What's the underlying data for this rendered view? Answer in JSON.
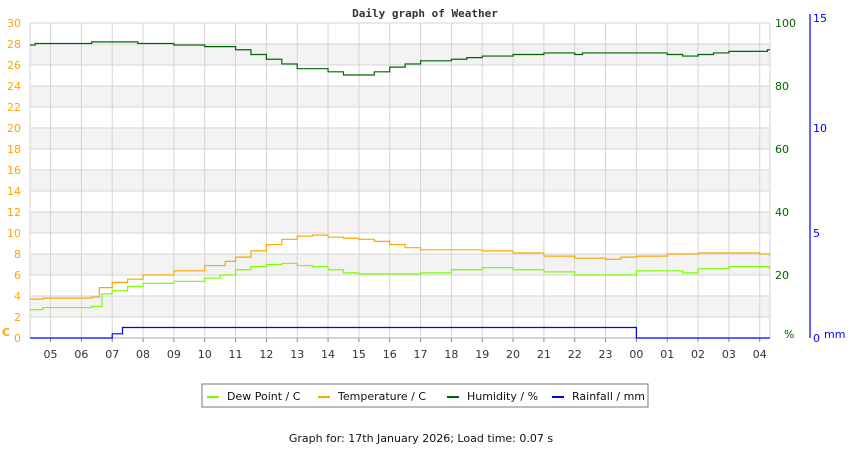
{
  "chart_data": {
    "type": "line",
    "title": "Daily graph of Weather",
    "footer": "Graph for: 17th January 2026; Load time: 0.07 s",
    "x_range": [
      "04:20",
      "04:20"
    ],
    "x_ticks": [
      "05",
      "06",
      "07",
      "08",
      "09",
      "10",
      "11",
      "12",
      "13",
      "14",
      "15",
      "16",
      "17",
      "18",
      "19",
      "20",
      "21",
      "22",
      "23",
      "00",
      "01",
      "02",
      "03",
      "04"
    ],
    "grid": true,
    "legend_placement": "bottom",
    "axes": {
      "left": {
        "label": "C",
        "range": [
          0,
          30
        ],
        "ticks": [
          "0",
          "2",
          "4",
          "6",
          "8",
          "10",
          "12",
          "14",
          "16",
          "18",
          "20",
          "22",
          "24",
          "26",
          "28",
          "30"
        ],
        "color": "#ffa500"
      },
      "right_humidity": {
        "label": "%",
        "range": [
          0,
          100
        ],
        "ticks": [
          "20",
          "40",
          "60",
          "80",
          "100"
        ],
        "color": "#006400"
      },
      "right_rain": {
        "label": "mm",
        "range": [
          0,
          15
        ],
        "ticks": [
          "0",
          "5",
          "10",
          "15"
        ],
        "color": "#0000ff"
      }
    },
    "series": [
      {
        "name": "Dew Point / C",
        "axis": "left",
        "color": "#7cfc00",
        "points": [
          [
            "04:20",
            2.7
          ],
          [
            "04:45",
            2.9
          ],
          [
            "06:20",
            3.0
          ],
          [
            "06:40",
            4.2
          ],
          [
            "07:00",
            4.5
          ],
          [
            "07:30",
            4.9
          ],
          [
            "08:00",
            5.2
          ],
          [
            "09:00",
            5.4
          ],
          [
            "10:00",
            5.7
          ],
          [
            "10:30",
            6.0
          ],
          [
            "11:00",
            6.5
          ],
          [
            "11:30",
            6.8
          ],
          [
            "12:00",
            7.0
          ],
          [
            "12:30",
            7.1
          ],
          [
            "13:00",
            6.9
          ],
          [
            "13:30",
            6.8
          ],
          [
            "14:00",
            6.5
          ],
          [
            "14:30",
            6.2
          ],
          [
            "15:00",
            6.1
          ],
          [
            "16:00",
            6.1
          ],
          [
            "17:00",
            6.2
          ],
          [
            "18:00",
            6.5
          ],
          [
            "19:00",
            6.7
          ],
          [
            "20:00",
            6.5
          ],
          [
            "21:00",
            6.3
          ],
          [
            "22:00",
            6.0
          ],
          [
            "23:00",
            6.0
          ],
          [
            "00:00",
            6.4
          ],
          [
            "01:00",
            6.4
          ],
          [
            "01:30",
            6.2
          ],
          [
            "02:00",
            6.6
          ],
          [
            "03:00",
            6.8
          ],
          [
            "04:00",
            6.8
          ],
          [
            "04:19",
            6.6
          ]
        ]
      },
      {
        "name": "Temperature / C",
        "axis": "left",
        "color": "#ffa500",
        "points": [
          [
            "04:20",
            3.7
          ],
          [
            "04:45",
            3.8
          ],
          [
            "06:20",
            3.9
          ],
          [
            "06:35",
            4.8
          ],
          [
            "07:00",
            5.3
          ],
          [
            "07:30",
            5.6
          ],
          [
            "08:00",
            6.0
          ],
          [
            "09:00",
            6.4
          ],
          [
            "10:00",
            6.9
          ],
          [
            "10:40",
            7.3
          ],
          [
            "11:00",
            7.7
          ],
          [
            "11:30",
            8.3
          ],
          [
            "12:00",
            8.9
          ],
          [
            "12:30",
            9.4
          ],
          [
            "13:00",
            9.7
          ],
          [
            "13:30",
            9.8
          ],
          [
            "14:00",
            9.6
          ],
          [
            "14:30",
            9.5
          ],
          [
            "15:00",
            9.4
          ],
          [
            "15:30",
            9.2
          ],
          [
            "16:00",
            8.9
          ],
          [
            "16:30",
            8.6
          ],
          [
            "17:00",
            8.4
          ],
          [
            "18:00",
            8.4
          ],
          [
            "19:00",
            8.3
          ],
          [
            "20:00",
            8.1
          ],
          [
            "21:00",
            7.8
          ],
          [
            "22:00",
            7.6
          ],
          [
            "23:00",
            7.5
          ],
          [
            "23:30",
            7.7
          ],
          [
            "00:00",
            7.8
          ],
          [
            "01:00",
            8.0
          ],
          [
            "02:00",
            8.1
          ],
          [
            "03:00",
            8.1
          ],
          [
            "04:00",
            8.0
          ],
          [
            "04:19",
            7.9
          ]
        ]
      },
      {
        "name": "Humidity / %",
        "axis": "right_humidity",
        "color": "#006400",
        "points": [
          [
            "04:20",
            93
          ],
          [
            "04:30",
            93.5
          ],
          [
            "06:20",
            94
          ],
          [
            "07:50",
            93.5
          ],
          [
            "09:00",
            93
          ],
          [
            "10:00",
            92.5
          ],
          [
            "11:00",
            91.5
          ],
          [
            "11:30",
            90
          ],
          [
            "12:00",
            88.5
          ],
          [
            "12:30",
            87
          ],
          [
            "13:00",
            85.5
          ],
          [
            "14:00",
            84.5
          ],
          [
            "14:30",
            83.5
          ],
          [
            "15:00",
            83.5
          ],
          [
            "15:30",
            84.5
          ],
          [
            "16:00",
            86
          ],
          [
            "16:30",
            87
          ],
          [
            "17:00",
            88
          ],
          [
            "18:00",
            88.5
          ],
          [
            "18:30",
            89
          ],
          [
            "19:00",
            89.5
          ],
          [
            "20:00",
            90
          ],
          [
            "21:00",
            90.5
          ],
          [
            "22:00",
            90
          ],
          [
            "22:15",
            90.5
          ],
          [
            "00:00",
            90.5
          ],
          [
            "01:00",
            90
          ],
          [
            "01:30",
            89.5
          ],
          [
            "02:00",
            90
          ],
          [
            "02:30",
            90.5
          ],
          [
            "03:00",
            91
          ],
          [
            "04:00",
            91
          ],
          [
            "04:15",
            91.5
          ],
          [
            "04:19",
            91.5
          ]
        ]
      },
      {
        "name": "Rainfall / mm",
        "axis": "right_rain",
        "color": "#0000ff",
        "points": [
          [
            "04:20",
            0
          ],
          [
            "07:00",
            0.2
          ],
          [
            "07:20",
            0.5
          ],
          [
            "00:00",
            0
          ],
          [
            "04:19",
            0
          ]
        ]
      }
    ]
  }
}
